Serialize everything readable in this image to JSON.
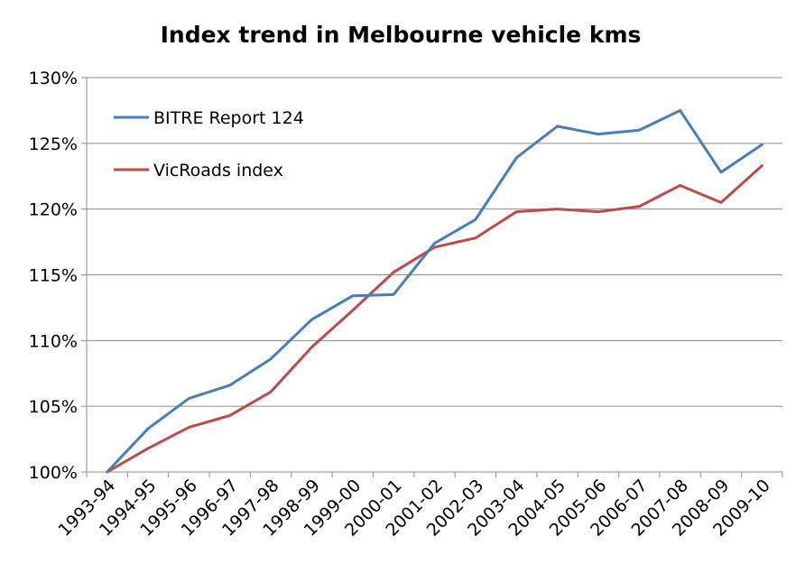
{
  "chart_data": {
    "type": "line",
    "title": "Index trend in Melbourne vehicle kms",
    "xlabel": "",
    "ylabel": "",
    "ylim": [
      100,
      130
    ],
    "yticks": [
      100,
      105,
      110,
      115,
      120,
      125,
      130
    ],
    "ytick_labels": [
      "100%",
      "105%",
      "110%",
      "115%",
      "120%",
      "125%",
      "130%"
    ],
    "grid": true,
    "legend_position": "top-left",
    "categories": [
      "1993-94",
      "1994-95",
      "1995-96",
      "1996-97",
      "1997-98",
      "1998-99",
      "1999-00",
      "2000-01",
      "2001-02",
      "2002-03",
      "2003-04",
      "2004-05",
      "2005-06",
      "2006-07",
      "2007-08",
      "2008-09",
      "2009-10"
    ],
    "series": [
      {
        "name": "BITRE Report 124",
        "color": "#4a7ebb",
        "values": [
          100.0,
          103.3,
          105.6,
          106.6,
          108.6,
          111.6,
          113.4,
          113.5,
          117.4,
          119.2,
          123.9,
          126.3,
          125.7,
          126.0,
          127.5,
          122.8,
          124.9
        ]
      },
      {
        "name": "VicRoads index",
        "color": "#be4b48",
        "values": [
          100.0,
          101.8,
          103.4,
          104.3,
          106.1,
          109.5,
          112.3,
          115.2,
          117.1,
          117.8,
          119.8,
          120.0,
          119.8,
          120.2,
          121.8,
          120.5,
          123.3
        ]
      }
    ]
  }
}
